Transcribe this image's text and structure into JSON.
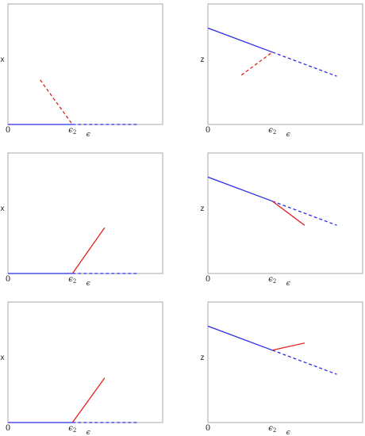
{
  "colors": {
    "blue": "#2a2ae6",
    "red": "#e02020",
    "frame": "#a8a8a8"
  },
  "chart_data": [
    {
      "type": "line",
      "panel": "row1-left",
      "ylabel": "x",
      "xlabel": "ϵ",
      "origin_label": "0",
      "xtick": {
        "base": "ϵ",
        "sub": "2",
        "x": 1
      },
      "xlim": [
        0,
        2.4
      ],
      "ylim": [
        0,
        1
      ],
      "segments": [
        {
          "color": "blue",
          "style": "solid",
          "points": [
            [
              0,
              0
            ],
            [
              1,
              0
            ]
          ]
        },
        {
          "color": "blue",
          "style": "dashed",
          "points": [
            [
              1,
              0
            ],
            [
              2,
              0
            ]
          ]
        },
        {
          "color": "red",
          "style": "dashed",
          "points": [
            [
              0.5,
              0.37
            ],
            [
              1,
              0
            ]
          ]
        }
      ]
    },
    {
      "type": "line",
      "panel": "row1-right",
      "ylabel": "z",
      "xlabel": "ϵ",
      "origin_label": "0",
      "xtick": {
        "base": "ϵ",
        "sub": "2",
        "x": 1
      },
      "xlim": [
        0,
        2.4
      ],
      "ylim": [
        0,
        1
      ],
      "segments": [
        {
          "color": "blue",
          "style": "solid",
          "points": [
            [
              0,
              0.8
            ],
            [
              1,
              0.6
            ]
          ]
        },
        {
          "color": "blue",
          "style": "dashed",
          "points": [
            [
              1,
              0.6
            ],
            [
              2,
              0.4
            ]
          ]
        },
        {
          "color": "red",
          "style": "dashed",
          "points": [
            [
              0.52,
              0.41
            ],
            [
              1,
              0.6
            ]
          ]
        }
      ]
    },
    {
      "type": "line",
      "panel": "row2-left",
      "ylabel": "x",
      "xlabel": "ϵ",
      "origin_label": "0",
      "xtick": {
        "base": "ϵ",
        "sub": "2",
        "x": 1
      },
      "xlim": [
        0,
        2.4
      ],
      "ylim": [
        0,
        1
      ],
      "segments": [
        {
          "color": "blue",
          "style": "solid",
          "points": [
            [
              0,
              0
            ],
            [
              1,
              0
            ]
          ]
        },
        {
          "color": "blue",
          "style": "dashed",
          "points": [
            [
              1,
              0
            ],
            [
              2,
              0
            ]
          ]
        },
        {
          "color": "red",
          "style": "solid",
          "points": [
            [
              1,
              0
            ],
            [
              1.5,
              0.38
            ]
          ]
        }
      ]
    },
    {
      "type": "line",
      "panel": "row2-right",
      "ylabel": "z",
      "xlabel": "ϵ",
      "origin_label": "0",
      "xtick": {
        "base": "ϵ",
        "sub": "2",
        "x": 1
      },
      "xlim": [
        0,
        2.4
      ],
      "ylim": [
        0,
        1
      ],
      "segments": [
        {
          "color": "blue",
          "style": "solid",
          "points": [
            [
              0,
              0.8
            ],
            [
              1,
              0.6
            ]
          ]
        },
        {
          "color": "blue",
          "style": "dashed",
          "points": [
            [
              1,
              0.6
            ],
            [
              2,
              0.4
            ]
          ]
        },
        {
          "color": "red",
          "style": "solid",
          "points": [
            [
              1,
              0.6
            ],
            [
              1.5,
              0.4
            ]
          ]
        }
      ]
    },
    {
      "type": "line",
      "panel": "row3-left",
      "ylabel": "x",
      "xlabel": "ϵ",
      "origin_label": "0",
      "xtick": {
        "base": "ϵ",
        "sub": "2",
        "x": 1
      },
      "xlim": [
        0,
        2.4
      ],
      "ylim": [
        0,
        1
      ],
      "segments": [
        {
          "color": "blue",
          "style": "solid",
          "points": [
            [
              0,
              0
            ],
            [
              1,
              0
            ]
          ]
        },
        {
          "color": "blue",
          "style": "dashed",
          "points": [
            [
              1,
              0
            ],
            [
              2,
              0
            ]
          ]
        },
        {
          "color": "red",
          "style": "solid",
          "points": [
            [
              1,
              0
            ],
            [
              1.5,
              0.37
            ]
          ]
        }
      ]
    },
    {
      "type": "line",
      "panel": "row3-right",
      "ylabel": "z",
      "xlabel": "ϵ",
      "origin_label": "0",
      "xtick": {
        "base": "ϵ",
        "sub": "2",
        "x": 1
      },
      "xlim": [
        0,
        2.4
      ],
      "ylim": [
        0,
        1
      ],
      "segments": [
        {
          "color": "blue",
          "style": "solid",
          "points": [
            [
              0,
              0.8
            ],
            [
              1,
              0.6
            ]
          ]
        },
        {
          "color": "blue",
          "style": "dashed",
          "points": [
            [
              1,
              0.6
            ],
            [
              2,
              0.4
            ]
          ]
        },
        {
          "color": "red",
          "style": "solid",
          "points": [
            [
              1,
              0.6
            ],
            [
              1.5,
              0.66
            ]
          ]
        }
      ]
    }
  ]
}
